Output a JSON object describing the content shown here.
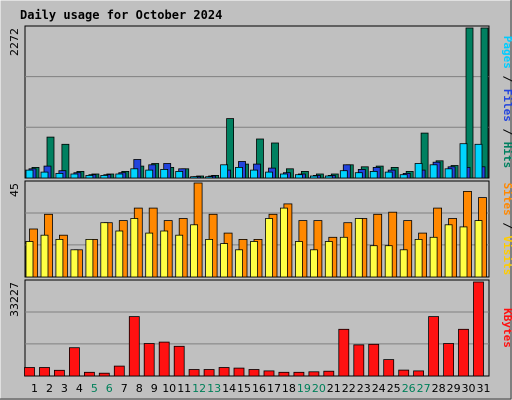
{
  "title": "Daily usage for October 2024",
  "colors": {
    "background": "#c0c0c0",
    "title": "#0000cc",
    "grid": "#808080",
    "pages": "#00d4ff",
    "files": "#2244dd",
    "hits": "#008060",
    "visits": "#ff8800",
    "sites": "#ffff44",
    "kbytes": "#ff1111",
    "weekend_label": "#00805a",
    "weekday_label": "#000000"
  },
  "right_labels": {
    "top": [
      {
        "text": "Pages",
        "color": "#00ccff"
      },
      {
        "text": " / ",
        "color": "#000000"
      },
      {
        "text": "Files",
        "color": "#2244dd"
      },
      {
        "text": " / ",
        "color": "#000000"
      },
      {
        "text": "Hits",
        "color": "#008060"
      }
    ],
    "middle": [
      {
        "text": "Sites",
        "color": "#ff8800"
      },
      {
        "text": " / ",
        "color": "#000000"
      },
      {
        "text": "Visits",
        "color": "#ffcc00"
      }
    ],
    "bottom": [
      {
        "text": "KBytes",
        "color": "#ff1111"
      }
    ]
  },
  "chart_data": [
    {
      "type": "bar",
      "panel": "hits-files-pages",
      "ymax_label": "2272",
      "ylim": [
        0,
        2272
      ],
      "categories": [
        "1",
        "2",
        "3",
        "4",
        "5",
        "6",
        "7",
        "8",
        "9",
        "10",
        "11",
        "12",
        "13",
        "14",
        "15",
        "16",
        "17",
        "18",
        "19",
        "20",
        "21",
        "22",
        "23",
        "24",
        "25",
        "26",
        "27",
        "28",
        "29",
        "30",
        "31"
      ],
      "weekend_days": [
        "5",
        "6",
        "12",
        "13",
        "19",
        "20",
        "26",
        "27"
      ],
      "series": [
        {
          "name": "Hits",
          "values": [
            160,
            620,
            510,
            100,
            60,
            60,
            100,
            180,
            220,
            160,
            140,
            30,
            40,
            900,
            210,
            590,
            530,
            140,
            100,
            60,
            60,
            200,
            170,
            180,
            160,
            100,
            680,
            260,
            190,
            2272,
            2272
          ]
        },
        {
          "name": "Files",
          "values": [
            140,
            180,
            110,
            80,
            50,
            50,
            80,
            280,
            200,
            220,
            140,
            20,
            30,
            120,
            250,
            210,
            150,
            80,
            60,
            40,
            40,
            200,
            130,
            160,
            120,
            70,
            120,
            240,
            170,
            160,
            170
          ]
        },
        {
          "name": "Pages",
          "values": [
            120,
            90,
            70,
            60,
            40,
            40,
            60,
            140,
            120,
            130,
            100,
            20,
            20,
            200,
            160,
            120,
            90,
            60,
            50,
            30,
            30,
            110,
            80,
            100,
            90,
            50,
            220,
            200,
            140,
            520,
            510
          ]
        }
      ]
    },
    {
      "type": "bar",
      "panel": "visits-sites",
      "ymax_label": "45",
      "ylim": [
        0,
        45
      ],
      "categories": [
        "1",
        "2",
        "3",
        "4",
        "5",
        "6",
        "7",
        "8",
        "9",
        "10",
        "11",
        "12",
        "13",
        "14",
        "15",
        "16",
        "17",
        "18",
        "19",
        "20",
        "21",
        "22",
        "23",
        "24",
        "25",
        "26",
        "27",
        "28",
        "29",
        "30",
        "31"
      ],
      "series": [
        {
          "name": "Visits",
          "values": [
            23,
            30,
            20,
            13,
            18,
            26,
            27,
            33,
            33,
            27,
            28,
            45,
            30,
            21,
            18,
            18,
            30,
            35,
            27,
            27,
            19,
            26,
            28,
            30,
            31,
            27,
            21,
            33,
            28,
            41,
            38
          ]
        },
        {
          "name": "Sites",
          "values": [
            17,
            20,
            18,
            13,
            18,
            26,
            22,
            28,
            21,
            22,
            20,
            25,
            18,
            16,
            13,
            17,
            28,
            33,
            17,
            13,
            17,
            19,
            28,
            15,
            15,
            13,
            18,
            19,
            25,
            24,
            27
          ]
        }
      ]
    },
    {
      "type": "bar",
      "panel": "kbytes",
      "ymax_label": "33227",
      "ylim": [
        0,
        33227
      ],
      "categories": [
        "1",
        "2",
        "3",
        "4",
        "5",
        "6",
        "7",
        "8",
        "9",
        "10",
        "11",
        "12",
        "13",
        "14",
        "15",
        "16",
        "17",
        "18",
        "19",
        "20",
        "21",
        "22",
        "23",
        "24",
        "25",
        "26",
        "27",
        "28",
        "29",
        "30",
        "31"
      ],
      "series": [
        {
          "name": "KBytes",
          "values": [
            3000,
            3000,
            2000,
            10000,
            1300,
            1000,
            3500,
            21000,
            11500,
            12000,
            10500,
            2300,
            2300,
            3000,
            2800,
            2300,
            1800,
            1300,
            1300,
            1500,
            1700,
            16500,
            11000,
            11200,
            5800,
            2100,
            1800,
            21000,
            11500,
            16500,
            33227
          ]
        }
      ]
    }
  ]
}
